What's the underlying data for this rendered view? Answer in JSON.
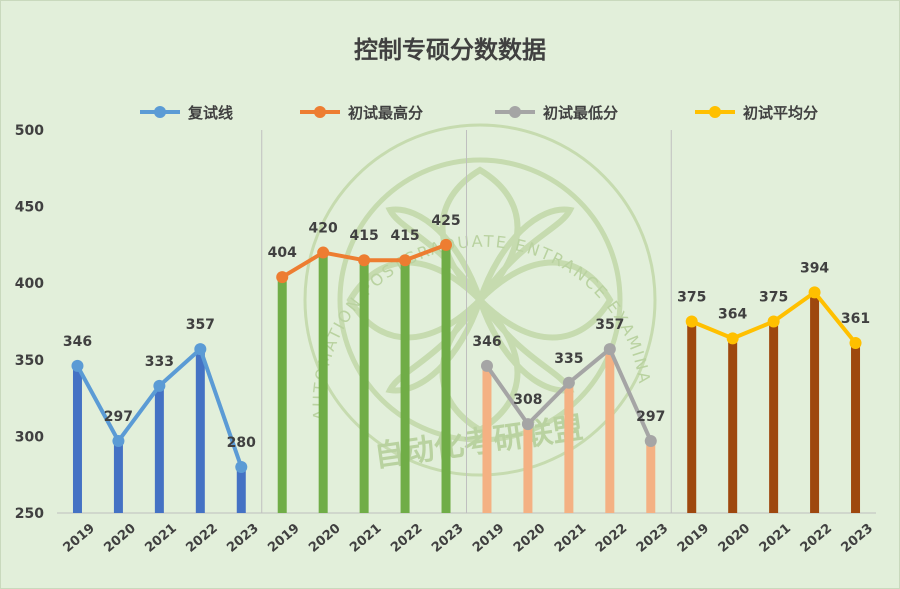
{
  "chart_data": {
    "type": "bar+line",
    "title": "控制专硕分数数据",
    "ylim": [
      250,
      500
    ],
    "yticks": [
      250,
      300,
      350,
      400,
      450,
      500
    ],
    "grid": "vertical group separators",
    "legend_position": "top",
    "groups": [
      {
        "name": "复试线",
        "categories": [
          "2019",
          "2020",
          "2021",
          "2022",
          "2023"
        ],
        "values": [
          346,
          297,
          333,
          357,
          280
        ],
        "bar_color": "#4472c4",
        "line_color": "#5b9bd5"
      },
      {
        "name": "初试最高分",
        "categories": [
          "2019",
          "2020",
          "2021",
          "2022",
          "2023"
        ],
        "values": [
          404,
          420,
          415,
          415,
          425
        ],
        "bar_color": "#70ad47",
        "line_color": "#ed7d31"
      },
      {
        "name": "初试最低分",
        "categories": [
          "2019",
          "2020",
          "2021",
          "2022",
          "2023"
        ],
        "values": [
          346,
          308,
          335,
          357,
          297
        ],
        "bar_color": "#f4b183",
        "line_color": "#a5a5a5"
      },
      {
        "name": "初试平均分",
        "categories": [
          "2019",
          "2020",
          "2021",
          "2022",
          "2023"
        ],
        "values": [
          375,
          364,
          375,
          394,
          361
        ],
        "bar_color": "#9e480e",
        "line_color": "#ffc000"
      }
    ]
  },
  "watermark": {
    "arc_text": "AUTOMATION POSTGRADUATE ENTRANCE EXAMINATION ALLIANCE",
    "chinese_text": "自动化考研联盟"
  }
}
